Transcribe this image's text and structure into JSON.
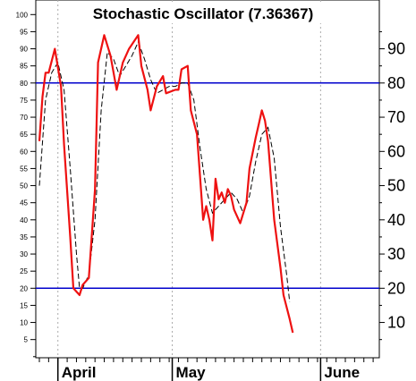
{
  "chart_data": {
    "type": "line",
    "title": "Stochastic Oscillator (7.36367)",
    "ylim": [
      0,
      103
    ],
    "x_months": [
      {
        "label": "April",
        "x": 6
      },
      {
        "label": "May",
        "x": 43
      },
      {
        "label": "June",
        "x": 91
      }
    ],
    "x_range": [
      0,
      110
    ],
    "left_yticks": [
      5,
      10,
      15,
      20,
      25,
      30,
      35,
      40,
      45,
      50,
      55,
      60,
      65,
      70,
      75,
      80,
      85,
      90,
      95,
      100
    ],
    "right_yticks": [
      10,
      20,
      30,
      40,
      50,
      60,
      70,
      80,
      90
    ],
    "reference_lines": [
      80,
      20
    ],
    "grid": {
      "vertical_dotted": true
    },
    "colors": {
      "fast": "#ee1111",
      "slow": "#000000",
      "reference": "#0000cc",
      "grid": "#aaaaaa"
    },
    "series": [
      {
        "style": "solid",
        "values": [
          [
            0,
            63
          ],
          [
            1,
            76
          ],
          [
            2,
            83
          ],
          [
            3,
            83
          ],
          [
            5,
            90
          ],
          [
            7,
            79
          ],
          [
            8,
            62
          ],
          [
            10,
            35
          ],
          [
            11,
            20
          ],
          [
            12,
            19
          ],
          [
            13,
            18
          ],
          [
            14,
            21
          ],
          [
            16,
            23
          ],
          [
            18,
            49
          ],
          [
            19,
            86
          ],
          [
            21,
            94
          ],
          [
            23,
            88
          ],
          [
            25,
            78
          ],
          [
            27,
            86
          ],
          [
            29,
            90
          ],
          [
            32,
            94
          ],
          [
            33,
            85
          ],
          [
            35,
            78
          ],
          [
            36,
            72
          ],
          [
            38,
            79
          ],
          [
            40,
            82
          ],
          [
            41,
            77
          ],
          [
            44,
            78
          ],
          [
            45,
            78
          ],
          [
            46,
            84
          ],
          [
            48,
            85
          ],
          [
            49,
            72
          ],
          [
            51,
            65
          ],
          [
            53,
            40
          ],
          [
            54,
            44
          ],
          [
            55,
            40
          ],
          [
            56,
            34
          ],
          [
            57,
            52
          ],
          [
            58,
            46
          ],
          [
            59,
            48
          ],
          [
            60,
            45
          ],
          [
            61,
            49
          ],
          [
            62,
            47
          ],
          [
            63,
            43
          ],
          [
            65,
            39
          ],
          [
            67,
            45
          ],
          [
            68,
            55
          ],
          [
            70,
            64
          ],
          [
            71,
            68
          ],
          [
            72,
            72
          ],
          [
            73,
            69
          ],
          [
            74,
            63
          ],
          [
            76,
            40
          ],
          [
            78,
            26
          ],
          [
            79,
            18
          ],
          [
            81,
            11
          ],
          [
            82,
            7
          ]
        ]
      },
      {
        "style": "dashed",
        "values": [
          [
            0,
            50
          ],
          [
            2,
            75
          ],
          [
            4,
            83
          ],
          [
            6,
            86
          ],
          [
            8,
            78
          ],
          [
            10,
            55
          ],
          [
            12,
            30
          ],
          [
            13,
            20
          ],
          [
            14,
            20
          ],
          [
            16,
            24
          ],
          [
            18,
            40
          ],
          [
            20,
            72
          ],
          [
            22,
            89
          ],
          [
            24,
            87
          ],
          [
            26,
            82
          ],
          [
            28,
            85
          ],
          [
            30,
            88
          ],
          [
            32,
            92
          ],
          [
            34,
            87
          ],
          [
            36,
            81
          ],
          [
            38,
            77
          ],
          [
            40,
            78
          ],
          [
            42,
            79
          ],
          [
            44,
            79
          ],
          [
            46,
            80
          ],
          [
            48,
            80
          ],
          [
            50,
            75
          ],
          [
            52,
            61
          ],
          [
            54,
            49
          ],
          [
            56,
            42
          ],
          [
            58,
            44
          ],
          [
            60,
            46
          ],
          [
            62,
            48
          ],
          [
            64,
            46
          ],
          [
            66,
            42
          ],
          [
            68,
            47
          ],
          [
            70,
            57
          ],
          [
            72,
            65
          ],
          [
            74,
            67
          ],
          [
            76,
            58
          ],
          [
            78,
            38
          ],
          [
            80,
            24
          ],
          [
            81,
            16
          ]
        ]
      }
    ]
  }
}
